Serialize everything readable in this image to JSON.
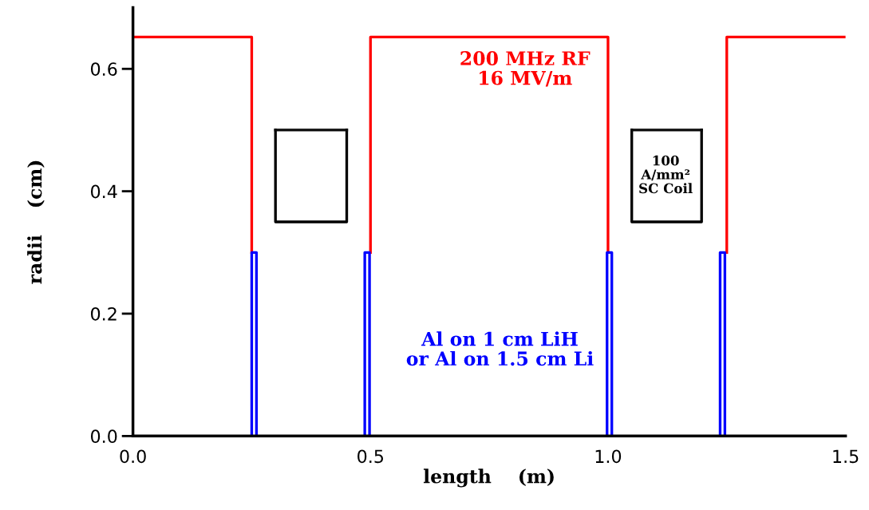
{
  "chart_data": {
    "type": "line",
    "xlabel": "length    (m)",
    "ylabel": "radii    (cm)",
    "xlim": [
      0,
      1.5
    ],
    "ylim": [
      0,
      0.7
    ],
    "xticks": [
      {
        "value": 0,
        "label": "0.0"
      },
      {
        "value": 0.5,
        "label": "0.5"
      },
      {
        "value": 1.0,
        "label": "1.0"
      },
      {
        "value": 1.5,
        "label": "1.5"
      }
    ],
    "yticks": [
      {
        "value": 0,
        "label": "0.0"
      },
      {
        "value": 0.2,
        "label": "0.2"
      },
      {
        "value": 0.4,
        "label": "0.4"
      },
      {
        "value": 0.6,
        "label": "0.6"
      }
    ],
    "grid": false,
    "legend": false,
    "marker": "none",
    "line_style": "solid",
    "series": [
      {
        "color": "#ff0000",
        "x": [
          0,
          0.25,
          0.25,
          0.375,
          0.5,
          0.5,
          1.0,
          1.0,
          1.125,
          1.25,
          1.25,
          1.5
        ],
        "values": [
          0.652,
          0.652,
          0.3,
          null,
          0.3,
          0.652,
          0.652,
          0.3,
          null,
          0.3,
          0.652,
          0.652
        ]
      },
      {
        "color": "#0000ff",
        "x": [
          0.25,
          0.25,
          0.26,
          0.26,
          0.37,
          0.488,
          0.488,
          0.498,
          0.498,
          0.75,
          0.998,
          0.998,
          1.008,
          1.008,
          1.12,
          1.236,
          1.236,
          1.246,
          1.246
        ],
        "values": [
          0,
          0.3,
          0.3,
          0,
          null,
          0,
          0.3,
          0.3,
          0,
          null,
          0,
          0.3,
          0.3,
          0,
          null,
          0,
          0.3,
          0.3,
          0
        ]
      },
      {
        "color": "#000000",
        "x": [
          0.3,
          0.3,
          0.45,
          0.45,
          0.75,
          1.05,
          1.05,
          1.197,
          1.197
        ],
        "values": [
          0.5,
          0.35,
          0.35,
          0.5,
          null,
          0.5,
          0.35,
          0.35,
          0.5
        ]
      },
      {
        "color": "#0a0a0a",
        "x": [
          0.3,
          0.45,
          0.75,
          1.05,
          1.197
        ],
        "values": [
          0.5,
          0.5,
          null,
          0.5,
          0.5
        ]
      }
    ],
    "annotations": [
      "200 MHz RF\n16 MV/m",
      "100\nA/mm²\nSC Coil",
      "Al on 1 cm LiH\nor Al on 1.5 cm Li"
    ]
  }
}
